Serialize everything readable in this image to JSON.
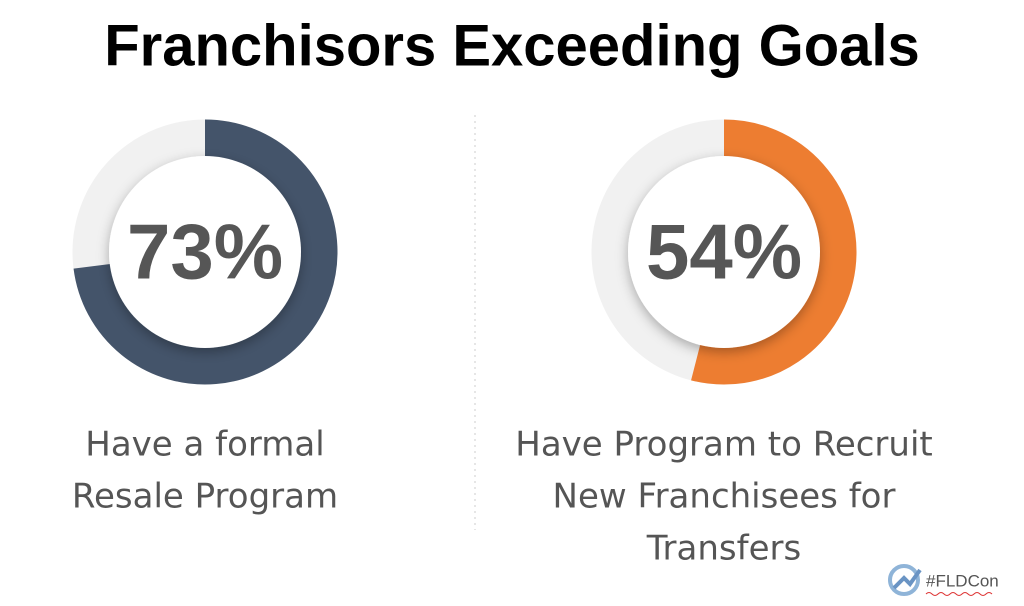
{
  "title": "Franchisors Exceeding Goals",
  "chart_data": [
    {
      "type": "donut",
      "values": [
        73
      ],
      "value_labels": [
        "73%"
      ],
      "color": "#44546a",
      "caption": [
        "Have a formal",
        "Resale Program"
      ]
    },
    {
      "type": "donut",
      "values": [
        54
      ],
      "value_labels": [
        "54%"
      ],
      "color": "#ed7d31",
      "caption": [
        "Have Program to Recruit",
        "New Franchisees for",
        "Transfers"
      ]
    }
  ],
  "footer": "#FLDCon"
}
